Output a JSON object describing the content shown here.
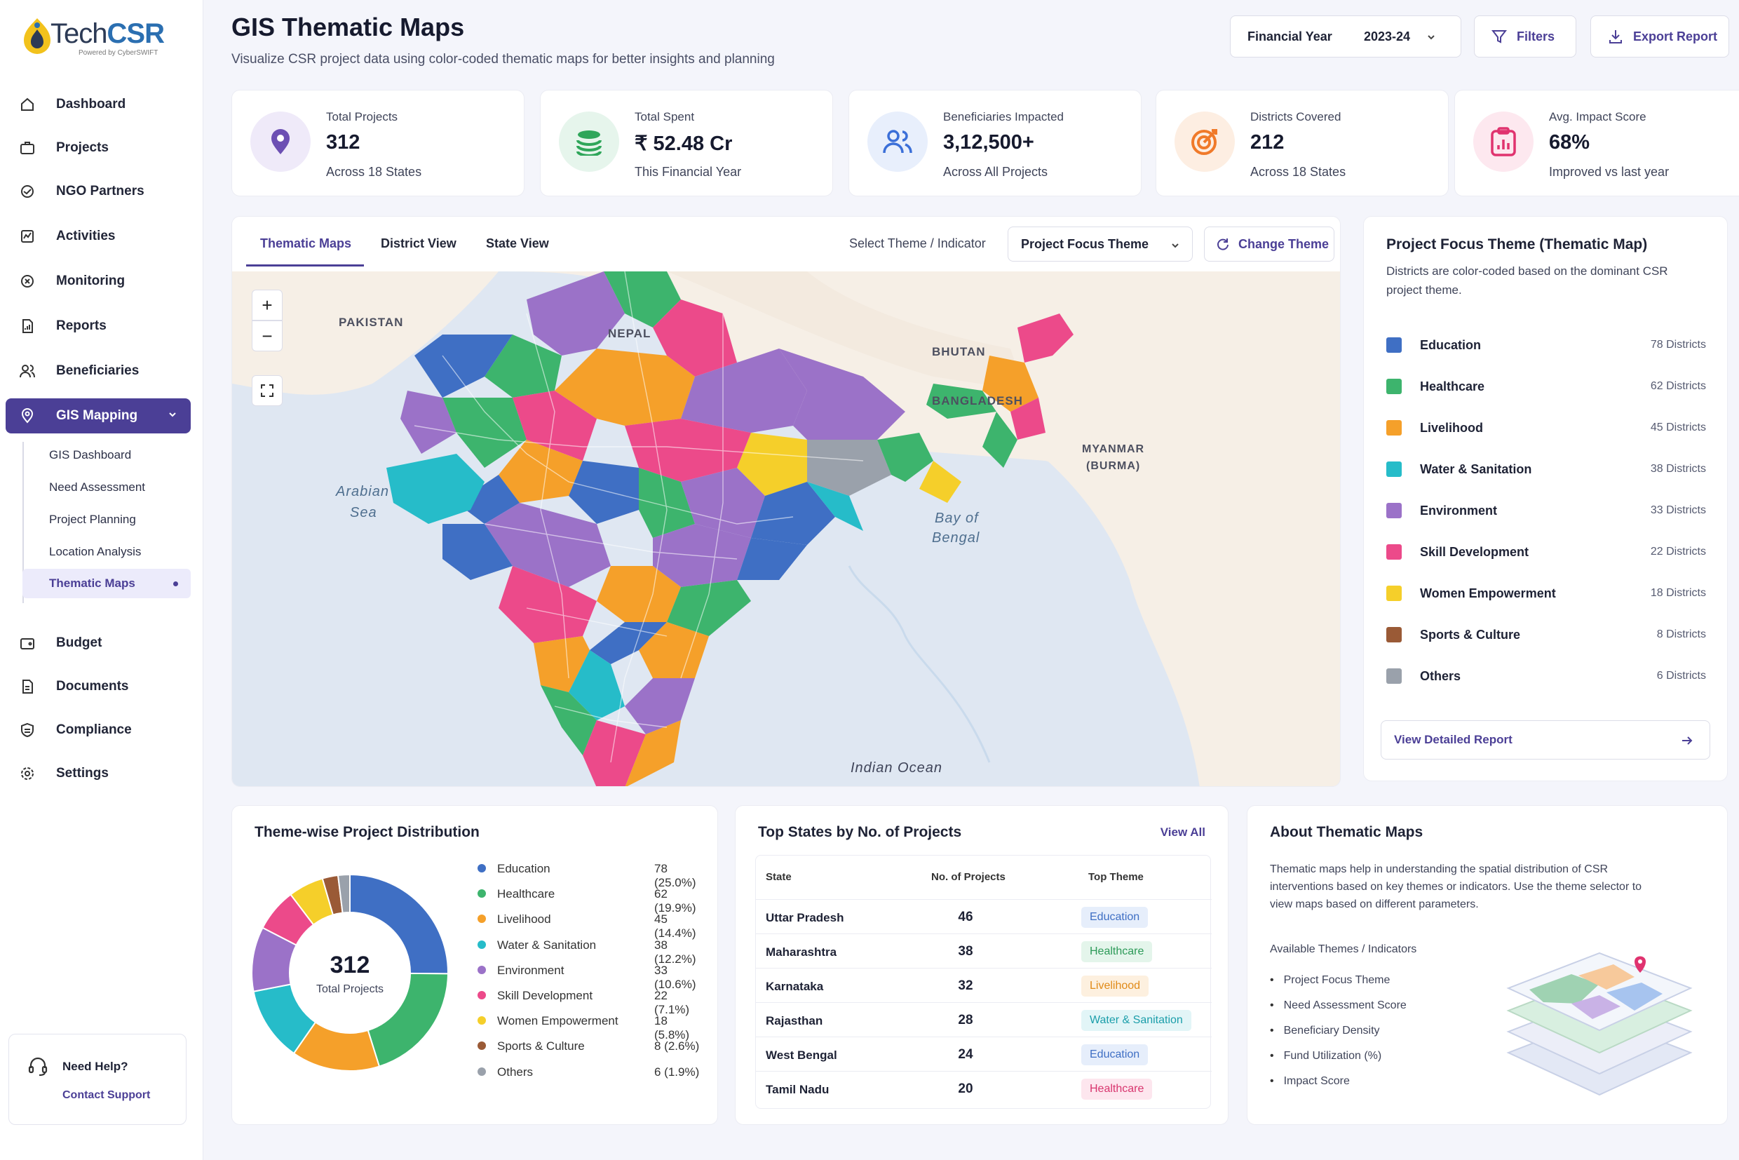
{
  "brand": {
    "name_a": "Tech",
    "name_b": "CSR",
    "tagline": "Powered by CyberSWIFT"
  },
  "sidebar": {
    "items": [
      {
        "label": "Dashboard",
        "icon": "home-icon"
      },
      {
        "label": "Projects",
        "icon": "briefcase-icon"
      },
      {
        "label": "NGO Partners",
        "icon": "handshake-icon"
      },
      {
        "label": "Activities",
        "icon": "activity-icon"
      },
      {
        "label": "Monitoring",
        "icon": "monitor-icon"
      },
      {
        "label": "Reports",
        "icon": "report-icon"
      },
      {
        "label": "Beneficiaries",
        "icon": "users-icon"
      },
      {
        "label": "GIS Mapping",
        "icon": "map-pin-icon",
        "active": true
      },
      {
        "label": "Budget",
        "icon": "wallet-icon"
      },
      {
        "label": "Documents",
        "icon": "document-icon"
      },
      {
        "label": "Compliance",
        "icon": "shield-icon"
      },
      {
        "label": "Settings",
        "icon": "gear-icon"
      }
    ],
    "sub_items": [
      "GIS Dashboard",
      "Need Assessment",
      "Project Planning",
      "Location Analysis",
      "Thematic Maps"
    ],
    "help": {
      "title": "Need Help?",
      "link": "Contact Support"
    }
  },
  "header": {
    "title": "GIS Thematic Maps",
    "subtitle": "Visualize CSR project data using color-coded thematic maps for better insights and planning",
    "fy_label": "Financial Year",
    "fy_value": "2023-24",
    "filters": "Filters",
    "export": "Export Report"
  },
  "stats": [
    {
      "label": "Total Projects",
      "value": "312",
      "sub": "Across 18 States",
      "color": "#6c4fb3"
    },
    {
      "label": "Total Spent",
      "value": "₹ 52.48 Cr",
      "sub": "This Financial Year",
      "color": "#2fa65a"
    },
    {
      "label": "Beneficiaries Impacted",
      "value": "3,12,500+",
      "sub": "Across All Projects",
      "color": "#3b6fd8"
    },
    {
      "label": "Districts Covered",
      "value": "212",
      "sub": "Across 18 States",
      "color": "#f07a2a"
    },
    {
      "label": "Avg. Impact Score",
      "value": "68%",
      "sub": "Improved vs last year",
      "color": "#e0336f"
    }
  ],
  "map": {
    "tabs": [
      "Thematic Maps",
      "District View",
      "State View"
    ],
    "select_label": "Select Theme / Indicator",
    "theme_value": "Project Focus Theme",
    "change_theme": "Change Theme",
    "zoom_in": "+",
    "zoom_out": "−",
    "labels": {
      "pakistan": "PAKISTAN",
      "nepal": "NEPAL",
      "bhutan": "BHUTAN",
      "bangladesh": "BANGLADESH",
      "myanmar_1": "MYANMAR",
      "myanmar_2": "(BURMA)",
      "arabian_1": "Arabian",
      "arabian_2": "Sea",
      "bay_1": "Bay of",
      "bay_2": "Bengal",
      "indian_ocean": "Indian Ocean"
    }
  },
  "legend": {
    "title": "Project Focus Theme (Thematic Map)",
    "desc": "Districts are color-coded based on the dominant CSR project theme.",
    "items": [
      {
        "name": "Education",
        "count": "78 Districts",
        "color": "#3f6fc4"
      },
      {
        "name": "Healthcare",
        "count": "62 Districts",
        "color": "#3db46d"
      },
      {
        "name": "Livelihood",
        "count": "45 Districts",
        "color": "#f5a02a"
      },
      {
        "name": "Water & Sanitation",
        "count": "38 Districts",
        "color": "#26bcc9"
      },
      {
        "name": "Environment",
        "count": "33 Districts",
        "color": "#9b72c8"
      },
      {
        "name": "Skill Development",
        "count": "22 Districts",
        "color": "#ec4a8a"
      },
      {
        "name": "Women Empowerment",
        "count": "18 Districts",
        "color": "#f5cf2a"
      },
      {
        "name": "Sports & Culture",
        "count": "8 Districts",
        "color": "#9a5a36"
      },
      {
        "name": "Others",
        "count": "6 Districts",
        "color": "#9aa1ab"
      }
    ],
    "view_report": "View Detailed Report"
  },
  "distribution": {
    "title": "Theme-wise Project Distribution",
    "center_value": "312",
    "center_label": "Total Projects",
    "items": [
      {
        "name": "Education",
        "value": 78,
        "pct": "78 (25.0%)",
        "color": "#3f6fc4"
      },
      {
        "name": "Healthcare",
        "value": 62,
        "pct": "62 (19.9%)",
        "color": "#3db46d"
      },
      {
        "name": "Livelihood",
        "value": 45,
        "pct": "45 (14.4%)",
        "color": "#f5a02a"
      },
      {
        "name": "Water & Sanitation",
        "value": 38,
        "pct": "38 (12.2%)",
        "color": "#26bcc9"
      },
      {
        "name": "Environment",
        "value": 33,
        "pct": "33 (10.6%)",
        "color": "#9b72c8"
      },
      {
        "name": "Skill Development",
        "value": 22,
        "pct": "22 (7.1%)",
        "color": "#ec4a8a"
      },
      {
        "name": "Women Empowerment",
        "value": 18,
        "pct": "18 (5.8%)",
        "color": "#f5cf2a"
      },
      {
        "name": "Sports & Culture",
        "value": 8,
        "pct": "8 (2.6%)",
        "color": "#9a5a36"
      },
      {
        "name": "Others",
        "value": 6,
        "pct": "6 (1.9%)",
        "color": "#9aa1ab"
      }
    ]
  },
  "chart_data": {
    "type": "pie",
    "categories": [
      "Education",
      "Healthcare",
      "Livelihood",
      "Water & Sanitation",
      "Environment",
      "Skill Development",
      "Women Empowerment",
      "Sports & Culture",
      "Others"
    ],
    "values": [
      78,
      62,
      45,
      38,
      33,
      22,
      18,
      8,
      6
    ],
    "title": "Theme-wise Project Distribution"
  },
  "states": {
    "title": "Top States by No. of Projects",
    "view_all": "View All",
    "headers": [
      "State",
      "No. of Projects",
      "Top Theme"
    ],
    "rows": [
      {
        "state": "Uttar Pradesh",
        "projects": "46",
        "theme": "Education",
        "bg": "#e6eefb",
        "fg": "#3f6fc4"
      },
      {
        "state": "Maharashtra",
        "projects": "38",
        "theme": "Healthcare",
        "bg": "#e4f5eb",
        "fg": "#2c9a58"
      },
      {
        "state": "Karnataka",
        "projects": "32",
        "theme": "Livelihood",
        "bg": "#fdf0df",
        "fg": "#e08a18"
      },
      {
        "state": "Rajasthan",
        "projects": "28",
        "theme": "Water & Sanitation",
        "bg": "#e2f5f7",
        "fg": "#1b9eaa"
      },
      {
        "state": "West Bengal",
        "projects": "24",
        "theme": "Education",
        "bg": "#e6eefb",
        "fg": "#3f6fc4"
      },
      {
        "state": "Tamil Nadu",
        "projects": "20",
        "theme": "Healthcare",
        "bg": "#fde6ee",
        "fg": "#d8356e"
      }
    ]
  },
  "about": {
    "title": "About Thematic Maps",
    "desc": "Thematic maps help in understanding the spatial distribution of CSR interventions based on key themes or indicators. Use the theme selector to view maps based on different parameters.",
    "available_label": "Available Themes / Indicators",
    "list": [
      "Project Focus Theme",
      "Need Assessment Score",
      "Beneficiary Density",
      "Fund Utilization (%)",
      "Impact Score"
    ]
  }
}
